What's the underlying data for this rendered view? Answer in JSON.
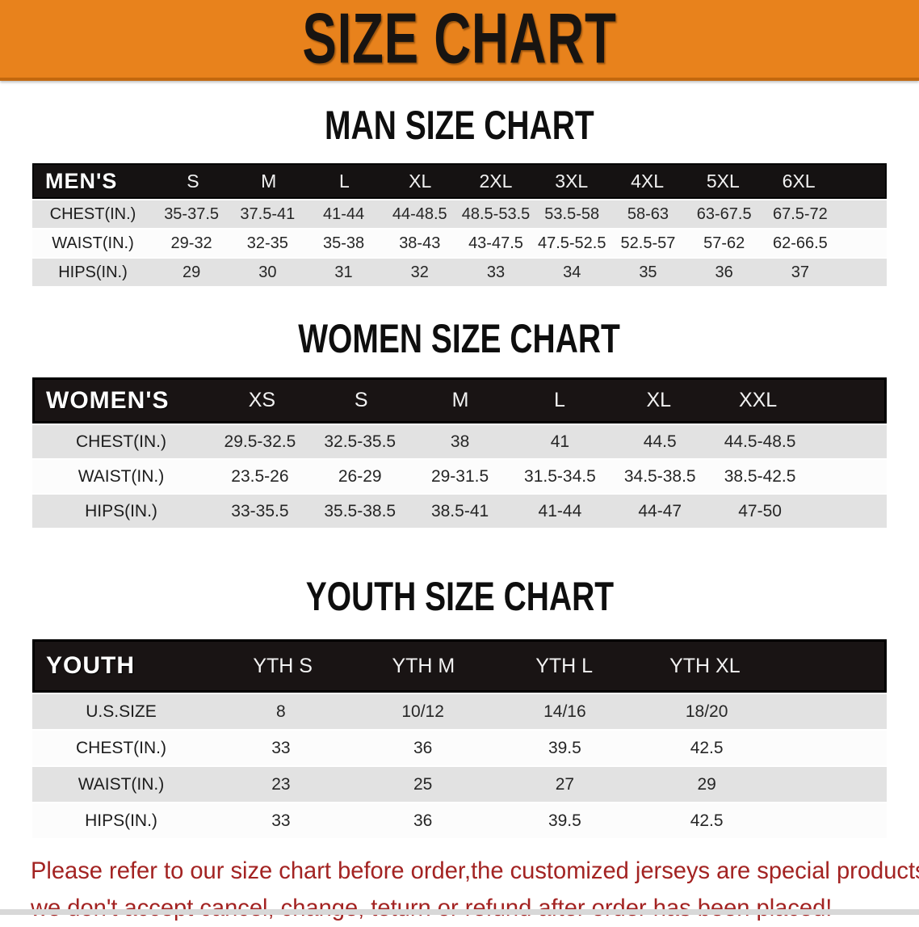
{
  "banner": {
    "title": "SIZE CHART",
    "bg_color": "#e8821c",
    "text_color": "#181411"
  },
  "sections": [
    {
      "heading": "MAN SIZE CHART",
      "header_label": "MEN'S",
      "columns": [
        "S",
        "M",
        "L",
        "XL",
        "2XL",
        "3XL",
        "4XL",
        "5XL",
        "6XL"
      ],
      "rows": [
        {
          "label": "CHEST(IN.)",
          "values": [
            "35-37.5",
            "37.5-41",
            "41-44",
            "44-48.5",
            "48.5-53.5",
            "53.5-58",
            "58-63",
            "63-67.5",
            "67.5-72"
          ]
        },
        {
          "label": "WAIST(IN.)",
          "values": [
            "29-32",
            "32-35",
            "35-38",
            "38-43",
            "43-47.5",
            "47.5-52.5",
            "52.5-57",
            "57-62",
            "62-66.5"
          ]
        },
        {
          "label": "HIPS(IN.)",
          "values": [
            "29",
            "30",
            "31",
            "32",
            "33",
            "34",
            "35",
            "36",
            "37"
          ]
        }
      ]
    },
    {
      "heading": "WOMEN SIZE CHART",
      "header_label": "WOMEN'S",
      "columns": [
        "XS",
        "S",
        "M",
        "L",
        "XL",
        "XXL"
      ],
      "rows": [
        {
          "label": "CHEST(IN.)",
          "values": [
            "29.5-32.5",
            "32.5-35.5",
            "38",
            "41",
            "44.5",
            "44.5-48.5"
          ]
        },
        {
          "label": "WAIST(IN.)",
          "values": [
            "23.5-26",
            "26-29",
            "29-31.5",
            "31.5-34.5",
            "34.5-38.5",
            "38.5-42.5"
          ]
        },
        {
          "label": "HIPS(IN.)",
          "values": [
            "33-35.5",
            "35.5-38.5",
            "38.5-41",
            "41-44",
            "44-47",
            "47-50"
          ]
        }
      ]
    },
    {
      "heading": "YOUTH SIZE CHART",
      "header_label": "YOUTH",
      "columns": [
        "YTH S",
        "YTH M",
        "YTH L",
        "YTH XL"
      ],
      "rows": [
        {
          "label": "U.S.SIZE",
          "values": [
            "8",
            "10/12",
            "14/16",
            "18/20"
          ]
        },
        {
          "label": "CHEST(IN.)",
          "values": [
            "33",
            "36",
            "39.5",
            "42.5"
          ]
        },
        {
          "label": "WAIST(IN.)",
          "values": [
            "23",
            "25",
            "27",
            "29"
          ]
        },
        {
          "label": "HIPS(IN.)",
          "values": [
            "33",
            "36",
            "39.5",
            "42.5"
          ]
        }
      ]
    }
  ],
  "disclaimer": {
    "line1": "Please refer to our size chart before order,the customized jerseys are special products,",
    "line2": "we don't accept cancel, change, teturn or refund after order has been placed!",
    "color": "#a32322"
  }
}
